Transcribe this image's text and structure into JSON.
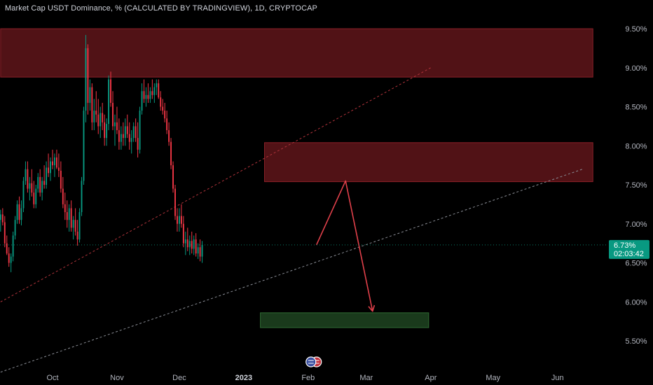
{
  "chart_data": {
    "type": "candlestick",
    "title": "Market Cap USDT Dominance, % (CALCULATED BY TRADINGVIEW), 1D, CRYPTOCAP",
    "y_ticks": [
      "9.50%",
      "9.00%",
      "8.50%",
      "8.00%",
      "7.50%",
      "7.00%",
      "6.50%",
      "6.00%",
      "5.50%"
    ],
    "y_tick_values": [
      9.5,
      9.0,
      8.5,
      8.0,
      7.5,
      7.0,
      6.5,
      6.0,
      5.5
    ],
    "ylim": [
      5.0,
      9.8
    ],
    "x_ticks": [
      {
        "label": "Oct",
        "day": 0,
        "bold": false
      },
      {
        "label": "Nov",
        "day": 31,
        "bold": false
      },
      {
        "label": "Dec",
        "day": 61,
        "bold": false
      },
      {
        "label": "2023",
        "day": 92,
        "bold": true
      },
      {
        "label": "Feb",
        "day": 123,
        "bold": false
      },
      {
        "label": "Mar",
        "day": 151,
        "bold": false
      },
      {
        "label": "Apr",
        "day": 182,
        "bold": false
      },
      {
        "label": "May",
        "day": 212,
        "bold": false
      },
      {
        "label": "Jun",
        "day": 243,
        "bold": false
      }
    ],
    "current_price_label": "6.73%",
    "countdown_label": "02:03:42",
    "current_price": 6.73,
    "zones": [
      {
        "kind": "resistance",
        "x_start_day": -25,
        "x_end_day": 260,
        "y_low": 8.88,
        "y_high": 9.5
      },
      {
        "kind": "resistance",
        "x_start_day": 102,
        "x_end_day": 260,
        "y_low": 7.54,
        "y_high": 8.04
      },
      {
        "kind": "target",
        "x_start_day": 100,
        "x_end_day": 181,
        "y_low": 5.67,
        "y_high": 5.86
      }
    ],
    "projection_path": [
      {
        "day": 127,
        "value": 6.73
      },
      {
        "day": 141,
        "value": 7.55
      },
      {
        "day": 154,
        "value": 5.88
      }
    ],
    "trend_lines": [
      {
        "style": "red-dashed",
        "from": {
          "day": -25,
          "value": 6.0
        },
        "to": {
          "day": 182,
          "value": 9.0
        }
      },
      {
        "style": "gray-dashed",
        "from": {
          "day": -25,
          "value": 5.1
        },
        "to": {
          "day": 255,
          "value": 7.7
        }
      }
    ],
    "ohlc_start_day": -25,
    "ohlc_step_day": 1,
    "ohlc": [
      [
        7.05,
        7.18,
        6.9,
        7.12
      ],
      [
        7.12,
        7.2,
        6.98,
        7.02
      ],
      [
        7.02,
        7.1,
        6.7,
        6.75
      ],
      [
        6.75,
        6.85,
        6.6,
        6.62
      ],
      [
        6.62,
        6.7,
        6.45,
        6.5
      ],
      [
        6.5,
        6.62,
        6.38,
        6.58
      ],
      [
        6.58,
        6.9,
        6.52,
        6.85
      ],
      [
        6.85,
        7.1,
        6.8,
        7.05
      ],
      [
        7.05,
        7.3,
        7.0,
        7.25
      ],
      [
        7.25,
        7.35,
        7.0,
        7.05
      ],
      [
        7.05,
        7.3,
        6.98,
        7.2
      ],
      [
        7.2,
        7.6,
        7.15,
        7.55
      ],
      [
        7.55,
        7.8,
        7.5,
        7.7
      ],
      [
        7.7,
        7.8,
        7.4,
        7.45
      ],
      [
        7.45,
        7.6,
        7.3,
        7.52
      ],
      [
        7.52,
        7.7,
        7.35,
        7.4
      ],
      [
        7.4,
        7.55,
        7.2,
        7.25
      ],
      [
        7.25,
        7.5,
        7.2,
        7.45
      ],
      [
        7.45,
        7.65,
        7.4,
        7.6
      ],
      [
        7.6,
        7.7,
        7.35,
        7.4
      ],
      [
        7.4,
        7.6,
        7.3,
        7.55
      ],
      [
        7.55,
        7.75,
        7.45,
        7.5
      ],
      [
        7.5,
        7.8,
        7.45,
        7.72
      ],
      [
        7.72,
        7.9,
        7.6,
        7.65
      ],
      [
        7.65,
        7.85,
        7.55,
        7.8
      ],
      [
        7.8,
        7.95,
        7.7,
        7.75
      ],
      [
        7.75,
        7.9,
        7.6,
        7.85
      ],
      [
        7.85,
        7.95,
        7.7,
        7.72
      ],
      [
        7.72,
        7.9,
        7.6,
        7.68
      ],
      [
        7.68,
        7.8,
        7.4,
        7.45
      ],
      [
        7.45,
        7.6,
        7.2,
        7.25
      ],
      [
        7.25,
        7.4,
        7.05,
        7.15
      ],
      [
        7.15,
        7.3,
        6.95,
        7.05
      ],
      [
        7.05,
        7.25,
        6.9,
        7.2
      ],
      [
        7.2,
        7.3,
        6.9,
        6.95
      ],
      [
        6.95,
        7.1,
        6.8,
        7.05
      ],
      [
        7.05,
        7.2,
        6.85,
        6.9
      ],
      [
        6.9,
        7.05,
        6.72,
        6.8
      ],
      [
        6.8,
        7.2,
        6.76,
        7.15
      ],
      [
        7.15,
        7.6,
        7.1,
        7.55
      ],
      [
        7.55,
        8.5,
        7.5,
        8.45
      ],
      [
        8.45,
        9.42,
        8.3,
        9.25
      ],
      [
        9.25,
        9.3,
        8.4,
        8.55
      ],
      [
        8.55,
        8.85,
        8.45,
        8.75
      ],
      [
        8.75,
        8.8,
        8.2,
        8.3
      ],
      [
        8.3,
        8.6,
        8.2,
        8.45
      ],
      [
        8.45,
        8.7,
        8.3,
        8.4
      ],
      [
        8.4,
        8.6,
        8.15,
        8.25
      ],
      [
        8.25,
        8.5,
        8.1,
        8.42
      ],
      [
        8.42,
        8.55,
        8.2,
        8.3
      ],
      [
        8.3,
        8.4,
        8.0,
        8.1
      ],
      [
        8.1,
        8.35,
        8.0,
        8.28
      ],
      [
        8.28,
        8.9,
        8.2,
        8.85
      ],
      [
        8.85,
        8.95,
        8.5,
        8.55
      ],
      [
        8.55,
        8.7,
        8.2,
        8.25
      ],
      [
        8.25,
        8.4,
        8.0,
        8.3
      ],
      [
        8.3,
        8.5,
        8.15,
        8.2
      ],
      [
        8.2,
        8.35,
        7.95,
        8.05
      ],
      [
        8.05,
        8.25,
        7.95,
        8.15
      ],
      [
        8.15,
        8.3,
        8.0,
        8.1
      ],
      [
        8.1,
        8.35,
        8.0,
        8.25
      ],
      [
        8.25,
        8.4,
        8.1,
        8.15
      ],
      [
        8.15,
        8.3,
        7.95,
        8.05
      ],
      [
        8.05,
        8.2,
        7.9,
        8.1
      ],
      [
        8.1,
        8.3,
        8.05,
        8.25
      ],
      [
        8.25,
        8.35,
        8.05,
        8.1
      ],
      [
        8.1,
        8.3,
        7.85,
        7.95
      ],
      [
        7.95,
        8.5,
        7.9,
        8.45
      ],
      [
        8.45,
        8.8,
        8.4,
        8.7
      ],
      [
        8.7,
        8.85,
        8.55,
        8.6
      ],
      [
        8.6,
        8.75,
        8.5,
        8.65
      ],
      [
        8.65,
        8.8,
        8.55,
        8.6
      ],
      [
        8.6,
        8.75,
        8.55,
        8.7
      ],
      [
        8.7,
        8.85,
        8.6,
        8.65
      ],
      [
        8.65,
        8.8,
        8.55,
        8.75
      ],
      [
        8.75,
        8.85,
        8.65,
        8.8
      ],
      [
        8.8,
        8.85,
        8.6,
        8.62
      ],
      [
        8.62,
        8.7,
        8.45,
        8.5
      ],
      [
        8.5,
        8.6,
        8.4,
        8.45
      ],
      [
        8.45,
        8.55,
        8.3,
        8.35
      ],
      [
        8.35,
        8.45,
        8.15,
        8.2
      ],
      [
        8.2,
        8.3,
        8.0,
        8.05
      ],
      [
        8.05,
        8.1,
        7.7,
        7.75
      ],
      [
        7.75,
        7.8,
        7.4,
        7.45
      ],
      [
        7.45,
        7.5,
        7.05,
        7.1
      ],
      [
        7.1,
        7.2,
        6.9,
        7.0
      ],
      [
        7.0,
        7.2,
        6.9,
        7.1
      ],
      [
        7.1,
        7.25,
        6.95,
        7.0
      ],
      [
        7.0,
        7.1,
        6.7,
        6.75
      ],
      [
        6.75,
        6.9,
        6.6,
        6.8
      ],
      [
        6.8,
        6.95,
        6.65,
        6.7
      ],
      [
        6.7,
        6.85,
        6.6,
        6.78
      ],
      [
        6.78,
        6.9,
        6.62,
        6.68
      ],
      [
        6.68,
        6.85,
        6.6,
        6.8
      ],
      [
        6.8,
        6.88,
        6.58,
        6.62
      ],
      [
        6.62,
        6.75,
        6.55,
        6.7
      ],
      [
        6.7,
        6.8,
        6.52,
        6.58
      ],
      [
        6.58,
        6.78,
        6.5,
        6.73
      ]
    ],
    "colors": {
      "up": "#089981",
      "down": "#f23645",
      "zone_red": "#5a1418",
      "zone_red_border": "#8b2028",
      "zone_green": "#1b3d1e",
      "zone_green_border": "#2f6b33",
      "projection": "#e0404a",
      "price_badge": "#089981",
      "axis_text": "#b2b5be"
    }
  },
  "event_icon": "us-flag-event-icon"
}
